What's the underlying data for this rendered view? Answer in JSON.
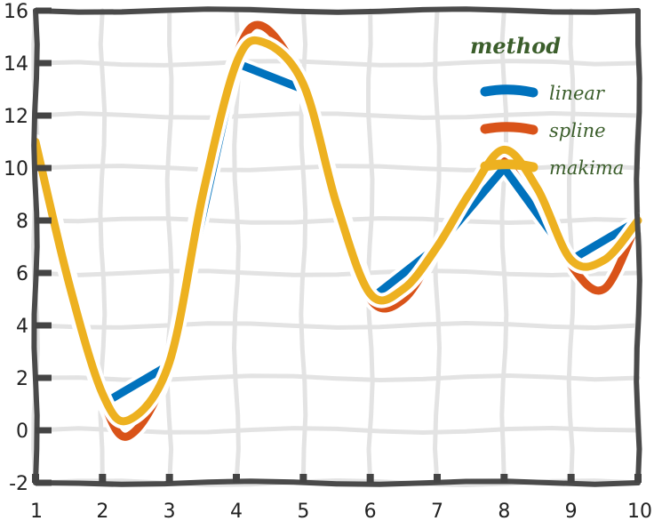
{
  "chart_data": {
    "type": "line",
    "title": "",
    "xlabel": "",
    "ylabel": "",
    "xlim": [
      1,
      10
    ],
    "ylim": [
      -2,
      16
    ],
    "xticks": [
      "1",
      "2",
      "3",
      "4",
      "5",
      "6",
      "7",
      "8",
      "9",
      "10"
    ],
    "yticks": [
      "-2",
      "0",
      "2",
      "4",
      "6",
      "8",
      "10",
      "12",
      "14",
      "16"
    ],
    "grid": true,
    "legend": {
      "title": "method",
      "placement": "top-right",
      "title_color": "#3b5e2b",
      "label_color": "#3b5e2b"
    },
    "series": [
      {
        "name": "linear",
        "color": "#0072bd",
        "x": [
          1,
          2,
          3,
          4,
          5,
          6,
          7,
          8,
          9,
          10
        ],
        "y": [
          11,
          1,
          2.5,
          14,
          13,
          5,
          7,
          10,
          6.5,
          8
        ]
      },
      {
        "name": "spline",
        "color": "#d95319",
        "x": [
          1,
          1.5,
          2,
          2.4,
          3,
          3.5,
          4,
          4.4,
          5,
          5.5,
          6,
          6.5,
          7,
          7.5,
          8,
          8.5,
          9,
          9.5,
          10
        ],
        "y": [
          11,
          5.5,
          1.2,
          -0.2,
          2.6,
          9.5,
          14.3,
          15.4,
          13.1,
          8.6,
          5.0,
          5.0,
          7.0,
          9.2,
          10.4,
          9.0,
          6.3,
          5.4,
          8.0
        ]
      },
      {
        "name": "makima",
        "color": "#edb120",
        "x": [
          1,
          1.5,
          2,
          2.4,
          3,
          3.5,
          4,
          4.4,
          5,
          5.5,
          6,
          6.5,
          7,
          7.5,
          8,
          8.5,
          9,
          9.5,
          10
        ],
        "y": [
          11,
          5.6,
          1.4,
          0.4,
          2.6,
          9.0,
          14.0,
          14.8,
          13.2,
          8.6,
          5.2,
          5.4,
          7.0,
          9.1,
          10.7,
          9.2,
          6.5,
          6.5,
          8.0
        ]
      }
    ]
  }
}
